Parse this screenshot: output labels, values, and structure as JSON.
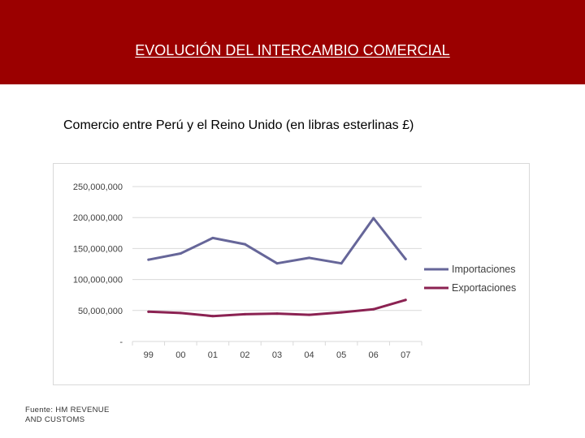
{
  "slide": {
    "title": "EVOLUCIÓN DEL INTERCAMBIO COMERCIAL",
    "subtitle": "Comercio entre Perú y el Reino Unido (en libras esterlinas £)",
    "source_line1": "Fuente: HM REVENUE",
    "source_line2": "AND CUSTOMS"
  },
  "colors": {
    "header_bg": "#9b0000",
    "importaciones": "#666699",
    "exportaciones": "#8b2252",
    "grid": "#d9d9d9"
  },
  "chart_data": {
    "type": "line",
    "title": "",
    "xlabel": "",
    "ylabel": "",
    "categories": [
      "99",
      "00",
      "01",
      "02",
      "03",
      "04",
      "05",
      "06",
      "07"
    ],
    "ylim": [
      0,
      250000000
    ],
    "yticks": [
      0,
      50000000,
      100000000,
      150000000,
      200000000,
      250000000
    ],
    "ytick_labels": [
      "-",
      "50,000,000",
      "100,000,000",
      "150,000,000",
      "200,000,000",
      "250,000,000"
    ],
    "grid": true,
    "legend_position": "right",
    "series": [
      {
        "name": "Importaciones",
        "color": "#666699",
        "values": [
          132000000,
          142000000,
          167000000,
          157000000,
          126000000,
          135000000,
          126000000,
          199000000,
          133000000
        ]
      },
      {
        "name": "Exportaciones",
        "color": "#8b2252",
        "values": [
          48000000,
          46000000,
          41000000,
          44000000,
          45000000,
          43000000,
          47000000,
          52000000,
          67000000
        ]
      }
    ]
  }
}
